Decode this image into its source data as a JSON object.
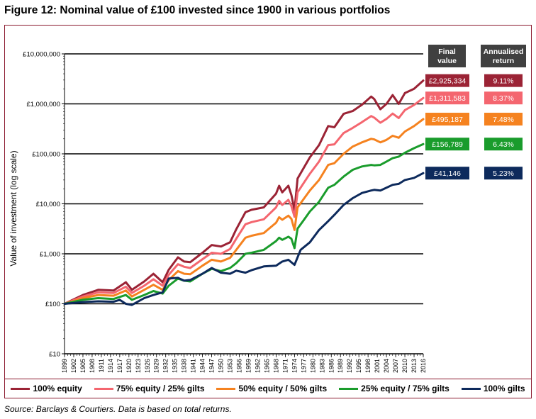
{
  "figure": {
    "title": "Figure 12: Nominal value of £100 invested since 1900 in various portfolios",
    "source": "Source: Barclays & Courtiers. Data is based on total returns."
  },
  "table": {
    "header_final": [
      "Final",
      "value"
    ],
    "header_annual": [
      "Annualised",
      "return"
    ]
  },
  "chart_data": {
    "type": "line",
    "ylabel": "Value of investment (log scale)",
    "yscale": "log",
    "ylim": [
      10,
      10000000
    ],
    "yticks": [
      10,
      100,
      1000,
      10000,
      100000,
      1000000,
      10000000
    ],
    "ytick_labels": [
      "£10",
      "£100",
      "£1,000",
      "£10,000",
      "£100,000",
      "£1,000,000",
      "£10,000,000"
    ],
    "xlim": [
      1899,
      2016
    ],
    "xticks": [
      1899,
      1902,
      1905,
      1908,
      1911,
      1914,
      1917,
      1920,
      1923,
      1926,
      1929,
      1932,
      1935,
      1938,
      1941,
      1944,
      1947,
      1950,
      1953,
      1956,
      1959,
      1962,
      1965,
      1968,
      1971,
      1974,
      1977,
      1980,
      1983,
      1986,
      1989,
      1992,
      1995,
      1998,
      2001,
      2004,
      2007,
      2010,
      2013,
      2016
    ],
    "grid": "horizontal at major ticks",
    "legend_position": "bottom",
    "series": [
      {
        "name": "100% equity",
        "color": "#9b2335",
        "final_value": "£2,925,334",
        "annualised_return": "9.11%",
        "x": [
          1899,
          1905,
          1910,
          1915,
          1919,
          1921,
          1925,
          1928,
          1931,
          1933,
          1936,
          1938,
          1940,
          1944,
          1947,
          1950,
          1953,
          1955,
          1958,
          1960,
          1964,
          1968,
          1969,
          1970,
          1972,
          1973,
          1974,
          1975,
          1977,
          1979,
          1982,
          1985,
          1987,
          1990,
          1993,
          1996,
          1999,
          2000,
          2002,
          2004,
          2006,
          2008,
          2010,
          2013,
          2016
        ],
        "y": [
          100,
          150,
          190,
          185,
          270,
          190,
          280,
          400,
          270,
          480,
          850,
          700,
          680,
          1050,
          1500,
          1400,
          1700,
          3100,
          6800,
          7600,
          8500,
          16000,
          23000,
          17000,
          23000,
          15000,
          7500,
          32000,
          52000,
          85000,
          150000,
          360000,
          340000,
          630000,
          720000,
          960000,
          1400000,
          1250000,
          780000,
          1000000,
          1500000,
          1000000,
          1650000,
          2000000,
          2925334
        ]
      },
      {
        "name": "75% equity / 25% gilts",
        "color": "#f4666f",
        "final_value": "£1,311,583",
        "annualised_return": "8.37%",
        "x": [
          1899,
          1905,
          1910,
          1915,
          1919,
          1921,
          1925,
          1928,
          1931,
          1933,
          1936,
          1938,
          1940,
          1944,
          1947,
          1950,
          1953,
          1955,
          1958,
          1960,
          1964,
          1968,
          1969,
          1970,
          1972,
          1973,
          1974,
          1975,
          1977,
          1979,
          1982,
          1985,
          1987,
          1990,
          1993,
          1996,
          1999,
          2000,
          2002,
          2004,
          2006,
          2008,
          2010,
          2013,
          2016
        ],
        "y": [
          100,
          140,
          170,
          165,
          220,
          165,
          230,
          310,
          230,
          380,
          620,
          550,
          520,
          780,
          1050,
          1000,
          1250,
          2000,
          3900,
          4300,
          4900,
          8500,
          11500,
          9500,
          12000,
          9000,
          5500,
          17000,
          26000,
          40000,
          70000,
          150000,
          155000,
          260000,
          330000,
          430000,
          570000,
          530000,
          420000,
          500000,
          640000,
          520000,
          750000,
          950000,
          1311583
        ]
      },
      {
        "name": "50% equity / 50% gilts",
        "color": "#f5821f",
        "final_value": "£495,187",
        "annualised_return": "7.48%",
        "x": [
          1899,
          1905,
          1910,
          1915,
          1919,
          1921,
          1925,
          1928,
          1931,
          1933,
          1936,
          1938,
          1940,
          1944,
          1947,
          1950,
          1953,
          1955,
          1958,
          1960,
          1964,
          1968,
          1969,
          1970,
          1972,
          1973,
          1974,
          1975,
          1977,
          1979,
          1982,
          1985,
          1987,
          1990,
          1993,
          1996,
          1999,
          2000,
          2002,
          2004,
          2006,
          2008,
          2010,
          2013,
          2016
        ],
        "y": [
          100,
          130,
          150,
          145,
          185,
          140,
          190,
          240,
          190,
          300,
          450,
          400,
          390,
          580,
          760,
          700,
          830,
          1200,
          2100,
          2300,
          2600,
          4200,
          5400,
          4800,
          5800,
          5000,
          3000,
          8500,
          12500,
          18500,
          30000,
          60000,
          65000,
          100000,
          140000,
          170000,
          200000,
          195000,
          170000,
          190000,
          230000,
          210000,
          280000,
          360000,
          495187
        ]
      },
      {
        "name": "25% equity / 75% gilts",
        "color": "#1a9c2c",
        "final_value": "£156,789",
        "annualised_return": "6.43%",
        "x": [
          1899,
          1905,
          1910,
          1915,
          1919,
          1921,
          1925,
          1928,
          1931,
          1933,
          1936,
          1938,
          1940,
          1944,
          1947,
          1950,
          1953,
          1955,
          1958,
          1960,
          1964,
          1968,
          1969,
          1970,
          1972,
          1973,
          1974,
          1975,
          1977,
          1979,
          1982,
          1985,
          1987,
          1990,
          1993,
          1996,
          1999,
          2000,
          2002,
          2004,
          2006,
          2008,
          2010,
          2013,
          2016
        ],
        "y": [
          100,
          120,
          130,
          125,
          150,
          120,
          150,
          180,
          160,
          230,
          320,
          290,
          280,
          400,
          500,
          450,
          520,
          650,
          1000,
          1050,
          1200,
          1800,
          2100,
          1900,
          2200,
          2000,
          1300,
          3200,
          4700,
          7000,
          11000,
          21000,
          24000,
          35000,
          48000,
          56000,
          60000,
          59000,
          60000,
          70000,
          82000,
          88000,
          105000,
          130000,
          156789
        ]
      },
      {
        "name": "100% gilts",
        "color": "#0d2a5c",
        "final_value": "£41,146",
        "annualised_return": "5.23%",
        "x": [
          1899,
          1905,
          1910,
          1915,
          1917,
          1919,
          1921,
          1925,
          1928,
          1931,
          1933,
          1936,
          1938,
          1940,
          1944,
          1947,
          1950,
          1953,
          1955,
          1958,
          1960,
          1964,
          1968,
          1970,
          1972,
          1974,
          1976,
          1979,
          1982,
          1985,
          1987,
          1990,
          1993,
          1996,
          1999,
          2000,
          2002,
          2004,
          2006,
          2008,
          2010,
          2013,
          2016
        ],
        "y": [
          100,
          108,
          112,
          110,
          120,
          100,
          95,
          130,
          150,
          170,
          320,
          330,
          290,
          300,
          400,
          520,
          420,
          400,
          460,
          420,
          470,
          560,
          580,
          700,
          760,
          600,
          1200,
          1700,
          3000,
          4500,
          6000,
          9500,
          13000,
          16500,
          18500,
          19000,
          18500,
          21000,
          24000,
          25000,
          30000,
          33000,
          41146
        ]
      }
    ]
  }
}
